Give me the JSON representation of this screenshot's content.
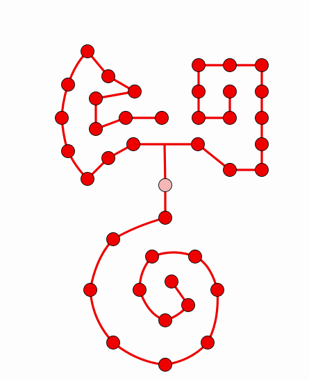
{
  "diagram": {
    "type": "graph",
    "description_label": "",
    "colors": {
      "background": "#fdfdfd",
      "edge": "#ee0000",
      "node_fill": "#ee0000",
      "node_stroke": "#000000",
      "hub_fill": "#f5b6b6"
    },
    "nodes": [
      "fan-top",
      "fan-upper",
      "fan-right",
      "fan-left-a",
      "fan-inner-a",
      "fan-left-b",
      "fan-inner-b",
      "fan-mid",
      "fan-end",
      "fan-left-c",
      "fan-inner-c",
      "fan-bottom",
      "arm-left",
      "arm-mid",
      "arm-right",
      "grid-1-1",
      "grid-1-2",
      "grid-1-3",
      "grid-2-1",
      "grid-2-2",
      "grid-2-3",
      "grid-3-1",
      "grid-3-2",
      "grid-3-3",
      "grid-4-3",
      "grid-5-2",
      "grid-5-3",
      "hub",
      "spiral-01",
      "spiral-02",
      "spiral-03",
      "spiral-04",
      "spiral-05",
      "spiral-06",
      "spiral-07",
      "spiral-08",
      "spiral-09",
      "spiral-10",
      "spiral-11",
      "spiral-12",
      "spiral-13",
      "spiral-14"
    ]
  }
}
